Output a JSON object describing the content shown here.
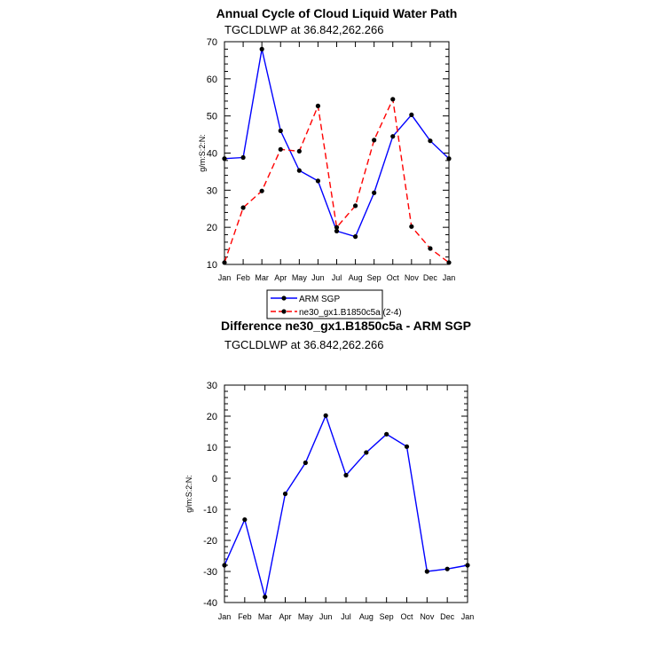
{
  "chart_data": [
    {
      "type": "line",
      "title": "Annual Cycle of Cloud Liquid Water Path",
      "subtitle": "TGCLDLWP at 36.842,262.266",
      "xlabel": "",
      "ylabel": "g/m:S:2:N:",
      "categories": [
        "Jan",
        "Feb",
        "Mar",
        "Apr",
        "May",
        "Jun",
        "Jul",
        "Aug",
        "Sep",
        "Oct",
        "Nov",
        "Dec",
        "Jan"
      ],
      "ylim": [
        10,
        70
      ],
      "yticks": [
        10,
        20,
        30,
        40,
        50,
        60,
        70
      ],
      "series": [
        {
          "name": "ARM SGP",
          "color": "#0000ff",
          "dash": "solid",
          "values": [
            38.5,
            38.8,
            68.0,
            46.0,
            35.3,
            32.5,
            19.0,
            17.5,
            29.3,
            44.5,
            50.3,
            43.3,
            38.5
          ]
        },
        {
          "name": "ne30_gx1.B1850c5a (2-4)",
          "color": "#ff0000",
          "dash": "dashed",
          "values": [
            10.5,
            25.3,
            29.8,
            41.0,
            40.5,
            52.7,
            20.0,
            25.8,
            43.5,
            54.5,
            20.2,
            14.3,
            10.5
          ]
        }
      ],
      "legend": "below"
    },
    {
      "type": "line",
      "title": "Difference ne30_gx1.B1850c5a - ARM SGP",
      "subtitle": "TGCLDLWP at 36.842,262.266",
      "xlabel": "",
      "ylabel": "g/m:S:2:N:",
      "categories": [
        "Jan",
        "Feb",
        "Mar",
        "Apr",
        "May",
        "Jun",
        "Jul",
        "Aug",
        "Sep",
        "Oct",
        "Nov",
        "Dec",
        "Jan"
      ],
      "ylim": [
        -40,
        30
      ],
      "yticks": [
        -40,
        -30,
        -20,
        -10,
        0,
        10,
        20,
        30
      ],
      "series": [
        {
          "name": "Difference",
          "color": "#0000ff",
          "dash": "solid",
          "values": [
            -28.0,
            -13.3,
            -38.2,
            -5.0,
            5.0,
            20.2,
            1.0,
            8.3,
            14.2,
            10.2,
            -30.0,
            -29.2,
            -28.0
          ]
        }
      ]
    }
  ]
}
